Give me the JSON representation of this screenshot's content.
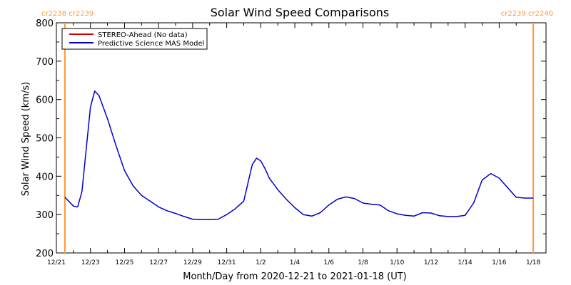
{
  "chart_data": {
    "type": "line",
    "title": "Solar Wind Speed Comparisons",
    "xlabel": "Month/Day from 2020-12-21 to 2021-01-18 (UT)",
    "ylabel": "Solar Wind Speed (km/s)",
    "xlim": [
      "2020-12-21T00:00",
      "2021-01-18T18:00"
    ],
    "ylim": [
      200,
      800
    ],
    "x_ticks": [
      {
        "date": "2020-12-21",
        "label": "12/21"
      },
      {
        "date": "2020-12-23",
        "label": "12/23"
      },
      {
        "date": "2020-12-25",
        "label": "12/25"
      },
      {
        "date": "2020-12-27",
        "label": "12/27"
      },
      {
        "date": "2020-12-29",
        "label": "12/29"
      },
      {
        "date": "2020-12-31",
        "label": "12/31"
      },
      {
        "date": "2021-01-02",
        "label": "1/2"
      },
      {
        "date": "2021-01-04",
        "label": "1/4"
      },
      {
        "date": "2021-01-06",
        "label": "1/6"
      },
      {
        "date": "2021-01-08",
        "label": "1/8"
      },
      {
        "date": "2021-01-10",
        "label": "1/10"
      },
      {
        "date": "2021-01-12",
        "label": "1/12"
      },
      {
        "date": "2021-01-14",
        "label": "1/14"
      },
      {
        "date": "2021-01-16",
        "label": "1/16"
      },
      {
        "date": "2021-01-18",
        "label": "1/18"
      }
    ],
    "y_ticks": [
      200,
      300,
      400,
      500,
      600,
      700,
      800
    ],
    "legend": {
      "placement": "top-left",
      "entries": [
        {
          "label": "STEREO-Ahead (No data)",
          "color": "#cc0000"
        },
        {
          "label": "Predictive Science MAS Model",
          "color": "#0000cc"
        }
      ]
    },
    "carrington_markers": [
      {
        "date": "2020-12-21T12:00",
        "label": "cr2238 cr2239",
        "side": "left",
        "color": "#ff9933"
      },
      {
        "date": "2021-01-18T00:00",
        "label": "cr2239 cr2240",
        "side": "right",
        "color": "#ff9933"
      }
    ],
    "series": [
      {
        "name": "Predictive Science MAS Model",
        "color": "#0000cc",
        "x": [
          "2020-12-21T12:00",
          "2020-12-22T00:00",
          "2020-12-22T06:00",
          "2020-12-22T12:00",
          "2020-12-23T00:00",
          "2020-12-23T06:00",
          "2020-12-23T12:00",
          "2020-12-24T00:00",
          "2020-12-24T12:00",
          "2020-12-25T00:00",
          "2020-12-25T12:00",
          "2020-12-26T00:00",
          "2020-12-26T12:00",
          "2020-12-27T00:00",
          "2020-12-27T12:00",
          "2020-12-28T00:00",
          "2020-12-28T12:00",
          "2020-12-29T00:00",
          "2020-12-29T12:00",
          "2020-12-30T00:00",
          "2020-12-30T12:00",
          "2020-12-31T00:00",
          "2020-12-31T12:00",
          "2021-01-01T00:00",
          "2021-01-01T12:00",
          "2021-01-01T18:00",
          "2021-01-02T00:00",
          "2021-01-02T06:00",
          "2021-01-02T12:00",
          "2021-01-03T00:00",
          "2021-01-03T12:00",
          "2021-01-04T00:00",
          "2021-01-04T12:00",
          "2021-01-05T00:00",
          "2021-01-05T12:00",
          "2021-01-06T00:00",
          "2021-01-06T12:00",
          "2021-01-07T00:00",
          "2021-01-07T12:00",
          "2021-01-08T00:00",
          "2021-01-08T12:00",
          "2021-01-09T00:00",
          "2021-01-09T12:00",
          "2021-01-10T00:00",
          "2021-01-10T12:00",
          "2021-01-11T00:00",
          "2021-01-11T12:00",
          "2021-01-12T00:00",
          "2021-01-12T12:00",
          "2021-01-13T00:00",
          "2021-01-13T12:00",
          "2021-01-14T00:00",
          "2021-01-14T12:00",
          "2021-01-15T00:00",
          "2021-01-15T12:00",
          "2021-01-16T00:00",
          "2021-01-16T12:00",
          "2021-01-17T00:00",
          "2021-01-17T12:00",
          "2021-01-18T00:00"
        ],
        "values": [
          345,
          322,
          320,
          360,
          580,
          622,
          610,
          550,
          480,
          415,
          375,
          350,
          335,
          320,
          310,
          303,
          295,
          288,
          287,
          287,
          288,
          300,
          315,
          335,
          430,
          447,
          440,
          420,
          395,
          365,
          340,
          318,
          300,
          296,
          305,
          325,
          340,
          346,
          342,
          330,
          327,
          325,
          310,
          302,
          298,
          296,
          305,
          304,
          297,
          295,
          295,
          298,
          330,
          390,
          407,
          395,
          370,
          345,
          343,
          343
        ]
      }
    ]
  }
}
